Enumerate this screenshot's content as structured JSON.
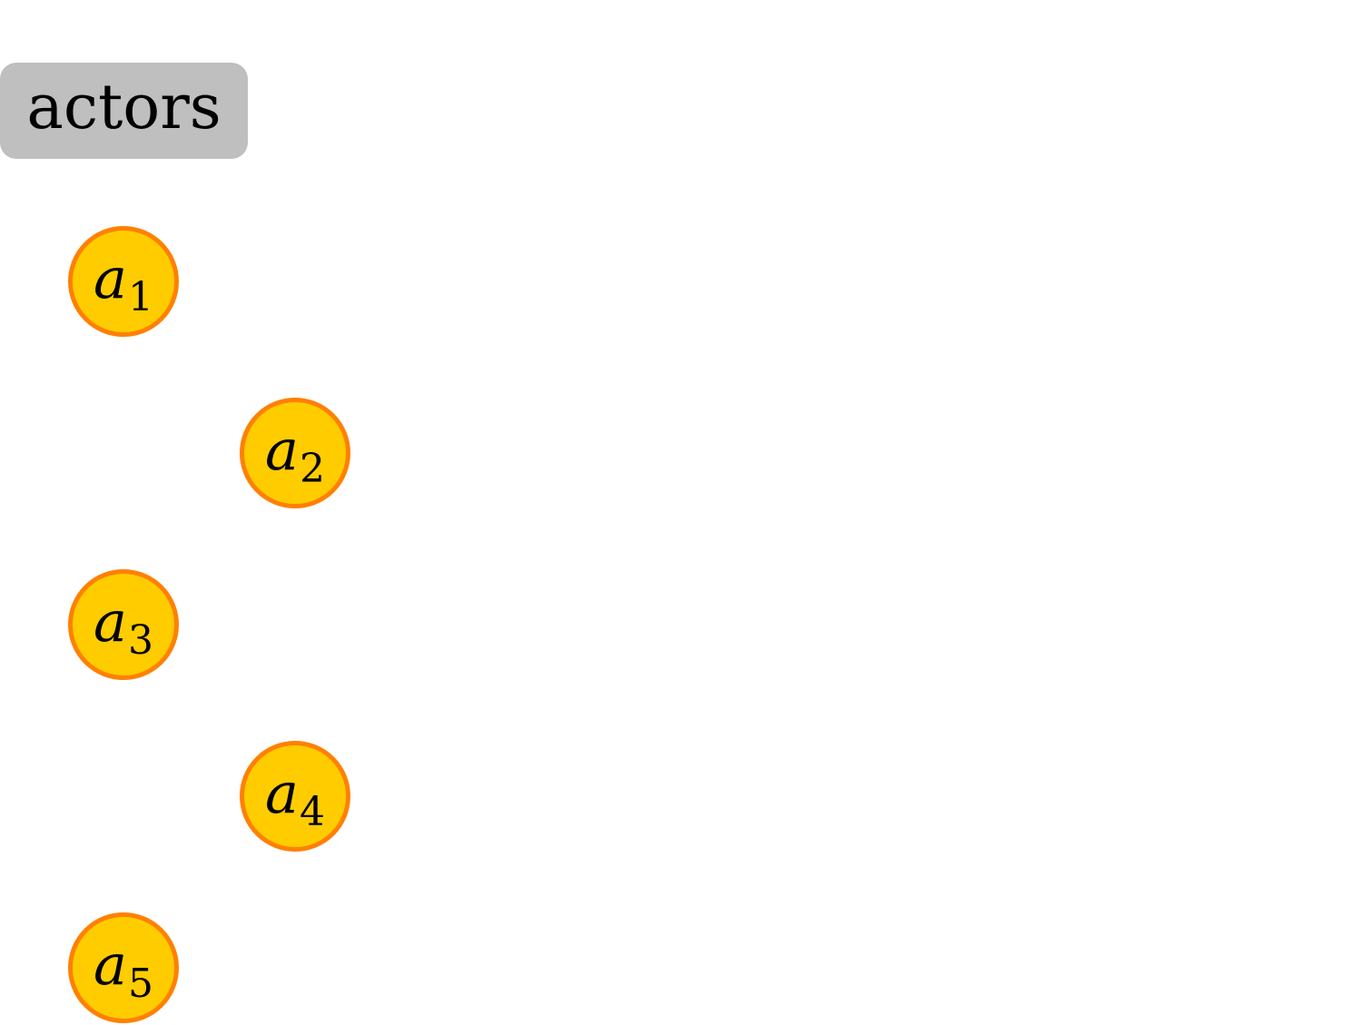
{
  "group": {
    "label": "actors",
    "color": "#bfbfbf"
  },
  "style": {
    "node_fill": "#ffcc00",
    "node_stroke": "#ff8000"
  },
  "nodes": [
    {
      "var": "a",
      "sub": "1"
    },
    {
      "var": "a",
      "sub": "2"
    },
    {
      "var": "a",
      "sub": "3"
    },
    {
      "var": "a",
      "sub": "4"
    },
    {
      "var": "a",
      "sub": "5"
    }
  ]
}
